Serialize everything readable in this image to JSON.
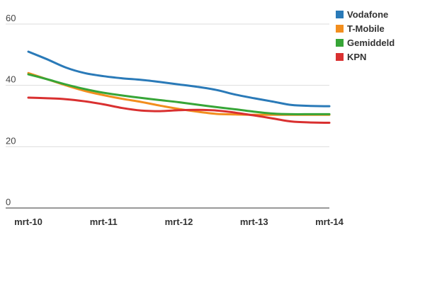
{
  "chart_data": {
    "type": "line",
    "title": "",
    "xlabel": "",
    "ylabel": "",
    "categories": [
      "mrt-10",
      "mrt-11",
      "mrt-12",
      "mrt-13",
      "mrt-14"
    ],
    "x": [
      0,
      0.25,
      0.5,
      0.75,
      1,
      1.25,
      1.5,
      1.75,
      2,
      2.25,
      2.5,
      2.75,
      3,
      3.25,
      3.5,
      3.75,
      4
    ],
    "yticks": [
      "0",
      "20",
      "40",
      "60"
    ],
    "ylim": [
      0,
      60
    ],
    "grid": true,
    "legend": "top-right",
    "series": [
      {
        "name": "Vodafone",
        "color": "#2a7ab8",
        "values": [
          51,
          48.5,
          45.8,
          44,
          43,
          42.3,
          41.8,
          41.1,
          40.3,
          39.5,
          38.5,
          37,
          35.8,
          34.7,
          33.6,
          33.3,
          33.2
        ]
      },
      {
        "name": "T-Mobile",
        "color": "#f28e1e",
        "values": [
          44,
          42,
          40,
          38.2,
          36.8,
          35.6,
          34.6,
          33.4,
          32.3,
          31.4,
          30.7,
          30.5,
          30.4,
          30.4,
          30.4,
          30.4,
          30.4
        ]
      },
      {
        "name": "Gemiddeld",
        "color": "#37a537",
        "values": [
          43.6,
          42,
          40.3,
          38.8,
          37.6,
          36.7,
          35.9,
          35.2,
          34.5,
          33.7,
          32.9,
          32.2,
          31.4,
          30.8,
          30.6,
          30.6,
          30.6
        ]
      },
      {
        "name": "KPN",
        "color": "#d93030",
        "values": [
          36,
          35.8,
          35.5,
          34.8,
          33.8,
          32.6,
          31.8,
          31.6,
          31.9,
          32,
          31.8,
          31.1,
          30.2,
          29.2,
          28.2,
          27.9,
          27.8
        ]
      }
    ]
  }
}
